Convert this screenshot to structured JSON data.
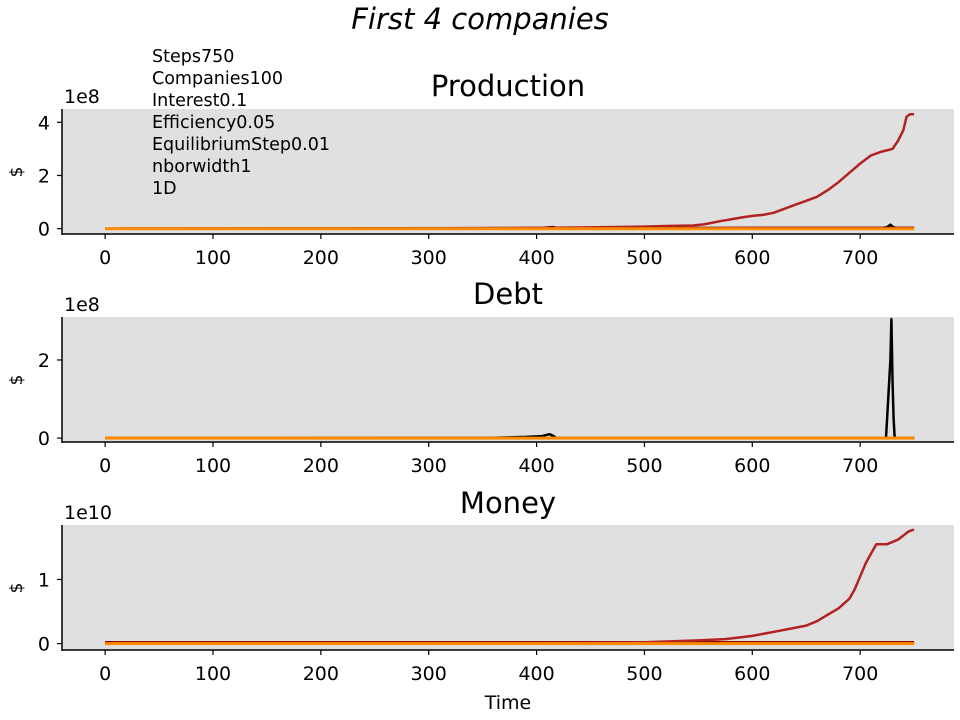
{
  "figure": {
    "title": "First 4 companies",
    "params": [
      "Steps750",
      "Companies100",
      "Interest0.1",
      "Efficiency0.05",
      "EquilibriumStep0.01",
      "nborwidth1",
      "1D"
    ]
  },
  "colors": {
    "panel_bg": "#e0e0e0",
    "series": [
      "#000000",
      "#8b0000",
      "#b22222",
      "#ff8c00"
    ]
  },
  "chart_data": [
    {
      "type": "line",
      "title": "Production",
      "ylabel": "$",
      "xlabel": "",
      "offset_text": "1e8",
      "xlim": [
        -40,
        787
      ],
      "ylim": [
        -0.2,
        4.5
      ],
      "xticks": [
        0,
        100,
        200,
        300,
        400,
        500,
        600,
        700
      ],
      "yticks": [
        0,
        2,
        4
      ],
      "grid": false,
      "series": [
        {
          "values": [
            [
              0,
              0
            ],
            [
              380,
              0.02
            ],
            [
              405,
              0.03
            ],
            [
              415,
              0.06
            ],
            [
              420,
              0.02
            ],
            [
              720,
              0.02
            ],
            [
              725,
              0.06
            ],
            [
              728,
              0.15
            ],
            [
              731,
              0.05
            ],
            [
              735,
              0.02
            ],
            [
              750,
              0.02
            ]
          ]
        },
        {
          "values": [
            [
              0,
              0
            ],
            [
              400,
              0.01
            ],
            [
              500,
              0.02
            ],
            [
              600,
              0.03
            ],
            [
              700,
              0.03
            ],
            [
              750,
              0.03
            ]
          ]
        },
        {
          "values": [
            [
              0,
              0
            ],
            [
              300,
              0.01
            ],
            [
              400,
              0.03
            ],
            [
              450,
              0.05
            ],
            [
              500,
              0.08
            ],
            [
              520,
              0.1
            ],
            [
              545,
              0.12
            ],
            [
              555,
              0.16
            ],
            [
              560,
              0.2
            ],
            [
              570,
              0.28
            ],
            [
              580,
              0.35
            ],
            [
              590,
              0.42
            ],
            [
              600,
              0.48
            ],
            [
              610,
              0.52
            ],
            [
              620,
              0.6
            ],
            [
              630,
              0.75
            ],
            [
              640,
              0.9
            ],
            [
              650,
              1.05
            ],
            [
              660,
              1.2
            ],
            [
              670,
              1.45
            ],
            [
              680,
              1.75
            ],
            [
              690,
              2.1
            ],
            [
              700,
              2.45
            ],
            [
              710,
              2.75
            ],
            [
              720,
              2.9
            ],
            [
              730,
              3.0
            ],
            [
              735,
              3.3
            ],
            [
              740,
              3.7
            ],
            [
              743,
              4.2
            ],
            [
              746,
              4.3
            ],
            [
              750,
              4.3
            ]
          ]
        },
        {
          "values": [
            [
              0,
              0
            ],
            [
              750,
              0
            ]
          ]
        }
      ]
    },
    {
      "type": "line",
      "title": "Debt",
      "ylabel": "$",
      "xlabel": "",
      "offset_text": "1e8",
      "xlim": [
        -40,
        787
      ],
      "ylim": [
        -0.1,
        3.1
      ],
      "xticks": [
        0,
        100,
        200,
        300,
        400,
        500,
        600,
        700
      ],
      "yticks": [
        0,
        2
      ],
      "grid": false,
      "series": [
        {
          "values": [
            [
              0,
              0
            ],
            [
              360,
              0.01
            ],
            [
              390,
              0.03
            ],
            [
              405,
              0.05
            ],
            [
              412,
              0.1
            ],
            [
              416,
              0.05
            ],
            [
              418,
              0.0
            ],
            [
              724,
              0.0
            ],
            [
              726,
              1.0
            ],
            [
              728,
              2.0
            ],
            [
              729,
              3.05
            ],
            [
              730,
              1.5
            ],
            [
              731,
              0.5
            ],
            [
              732,
              0.0
            ],
            [
              750,
              0.0
            ]
          ]
        },
        {
          "values": [
            [
              0,
              0
            ],
            [
              750,
              0
            ]
          ]
        },
        {
          "values": [
            [
              0,
              0
            ],
            [
              750,
              0
            ]
          ]
        },
        {
          "values": [
            [
              0,
              0
            ],
            [
              750,
              0
            ]
          ]
        }
      ]
    },
    {
      "type": "line",
      "title": "Money",
      "ylabel": "$",
      "xlabel": "Time",
      "offset_text": "1e10",
      "xlim": [
        -40,
        787
      ],
      "ylim": [
        -0.1,
        1.85
      ],
      "xticks": [
        0,
        100,
        200,
        300,
        400,
        500,
        600,
        700
      ],
      "yticks": [
        0,
        1
      ],
      "grid": false,
      "series": [
        {
          "values": [
            [
              0,
              0
            ],
            [
              750,
              0
            ]
          ]
        },
        {
          "values": [
            [
              0,
              0.02
            ],
            [
              750,
              0.02
            ]
          ]
        },
        {
          "values": [
            [
              0,
              0
            ],
            [
              400,
              0.005
            ],
            [
              450,
              0.01
            ],
            [
              500,
              0.02
            ],
            [
              550,
              0.05
            ],
            [
              575,
              0.07
            ],
            [
              600,
              0.12
            ],
            [
              625,
              0.2
            ],
            [
              650,
              0.28
            ],
            [
              660,
              0.35
            ],
            [
              670,
              0.45
            ],
            [
              680,
              0.55
            ],
            [
              690,
              0.7
            ],
            [
              695,
              0.85
            ],
            [
              700,
              1.05
            ],
            [
              705,
              1.25
            ],
            [
              710,
              1.4
            ],
            [
              715,
              1.55
            ],
            [
              725,
              1.55
            ],
            [
              735,
              1.62
            ],
            [
              745,
              1.75
            ],
            [
              750,
              1.78
            ]
          ]
        },
        {
          "values": [
            [
              0,
              0
            ],
            [
              750,
              0
            ]
          ]
        }
      ]
    }
  ]
}
